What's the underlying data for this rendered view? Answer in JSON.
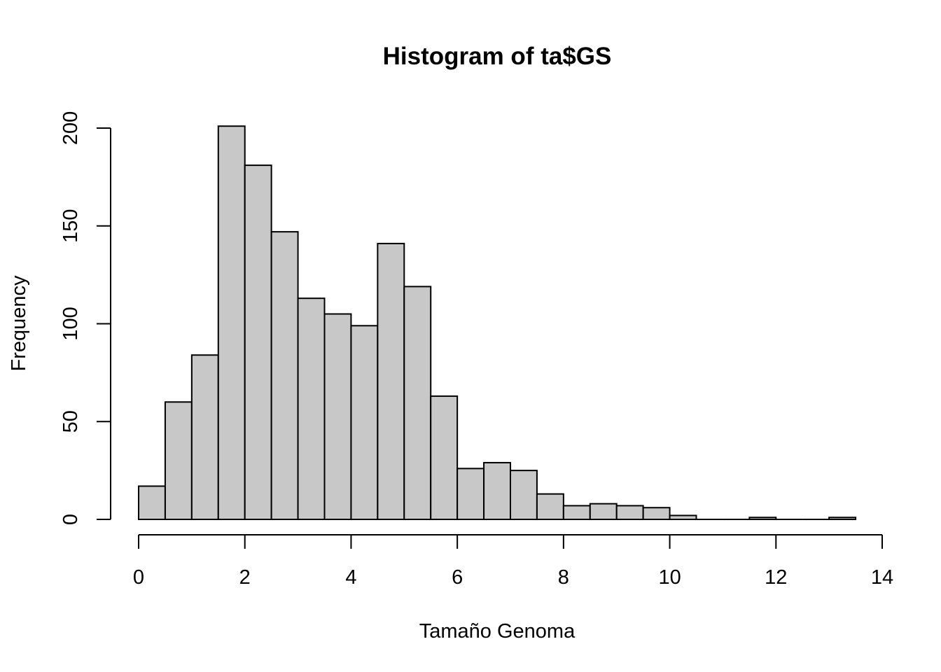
{
  "chart_data": {
    "type": "bar",
    "title": "Histogram of ta$GS",
    "xlabel": "Tamaño Genoma",
    "ylabel": "Frequency",
    "bin_width": 0.5,
    "bin_edges": [
      0,
      0.5,
      1,
      1.5,
      2,
      2.5,
      3,
      3.5,
      4,
      4.5,
      5,
      5.5,
      6,
      6.5,
      7,
      7.5,
      8,
      8.5,
      9,
      9.5,
      10,
      10.5,
      11,
      11.5,
      12,
      12.5,
      13,
      13.5
    ],
    "values": [
      17,
      60,
      84,
      201,
      181,
      147,
      113,
      105,
      99,
      141,
      119,
      63,
      26,
      29,
      25,
      13,
      7,
      8,
      7,
      6,
      2,
      0,
      0,
      1,
      0,
      0,
      1
    ],
    "xlim": [
      0,
      14
    ],
    "ylim": [
      0,
      200
    ],
    "x_ticks": [
      0,
      2,
      4,
      6,
      8,
      10,
      12,
      14
    ],
    "y_ticks": [
      0,
      50,
      100,
      150,
      200
    ],
    "bar_color": "#c8c8c8",
    "grid": false
  }
}
